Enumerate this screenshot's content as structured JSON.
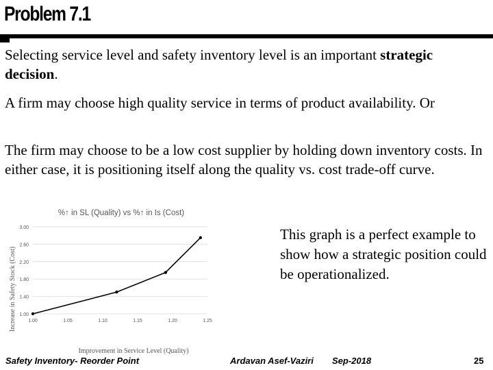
{
  "slide": {
    "title": "Problem 7.1",
    "paragraph1_text": "Selecting service level and safety inventory level is an important ",
    "paragraph1_bold": "strategic decision",
    "paragraph1_end": ".",
    "paragraph2": "A firm may choose high quality service in terms of product availability. Or",
    "paragraph3": "The firm may choose to be a low cost supplier by holding down inventory costs. In either case, it is positioning itself along the quality vs. cost trade-off curve.",
    "side_note": "This graph is a perfect example to show how a strategic position could be operationalized."
  },
  "footer": {
    "left": "Safety Inventory- Reorder Point",
    "author": "Ardavan Asef-Vaziri",
    "date": "Sep-2018",
    "page": "25"
  },
  "colors": {
    "accent": "#000000",
    "chart_line": "#000000",
    "chart_grid": "#e0e0e0",
    "chart_text": "#555555"
  },
  "chart_data": {
    "type": "line",
    "title": "%↑ in SL (Quality) vs %↑ in Is (Cost)",
    "xlabel": "Improvement in Service Level (Quality)",
    "ylabel": "Increase in Safety Stock (Cost)",
    "x_ticks": [
      "1.00",
      "1.05",
      "1.10",
      "1.15",
      "1.20",
      "1.25"
    ],
    "y_ticks": [
      "1.00",
      "1.40",
      "1.80",
      "2.20",
      "2.60",
      "3.00"
    ],
    "xlim": [
      1.0,
      1.25
    ],
    "ylim": [
      1.0,
      3.0
    ],
    "grid": "horizontal",
    "series": [
      {
        "x": [
          1.0,
          1.12,
          1.19,
          1.24
        ],
        "y": [
          1.0,
          1.5,
          1.95,
          2.75
        ]
      }
    ]
  }
}
